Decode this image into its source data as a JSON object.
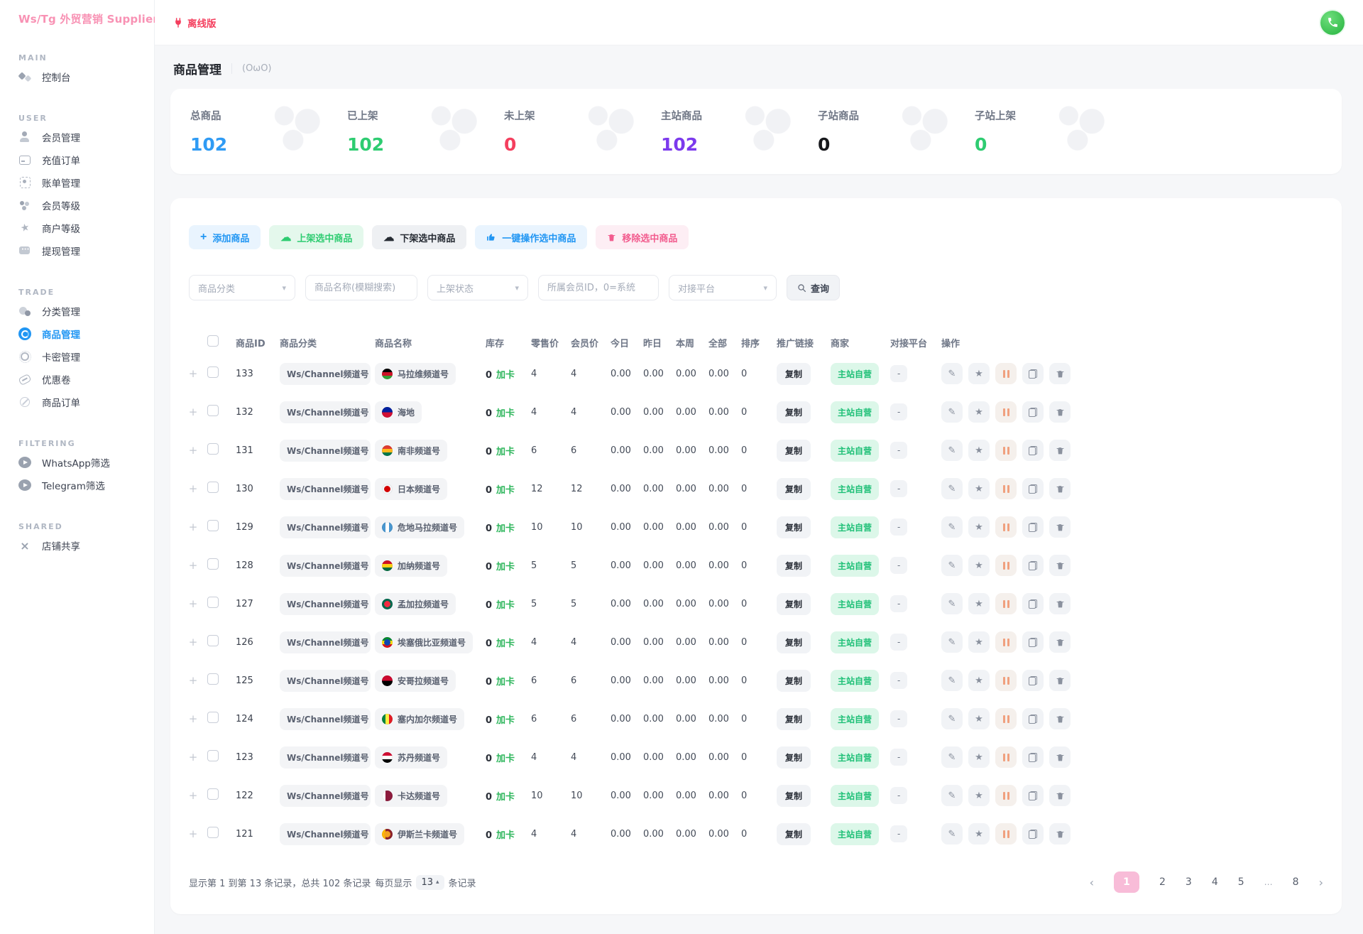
{
  "brand": {
    "logo": "Ws/Tg 外贸营销 Supplier",
    "collapse": "«"
  },
  "topbar": {
    "offline": "离线版"
  },
  "page": {
    "title": "商品管理",
    "subtitle": "(OωO)"
  },
  "sidebar": {
    "sections": [
      {
        "label": "MAIN",
        "items": [
          {
            "label": "控制台"
          }
        ]
      },
      {
        "label": "USER",
        "items": [
          {
            "label": "会员管理"
          },
          {
            "label": "充值订单"
          },
          {
            "label": "账单管理"
          },
          {
            "label": "会员等级"
          },
          {
            "label": "商户等级"
          },
          {
            "label": "提现管理"
          }
        ]
      },
      {
        "label": "TRADE",
        "items": [
          {
            "label": "分类管理"
          },
          {
            "label": "商品管理",
            "active": true
          },
          {
            "label": "卡密管理"
          },
          {
            "label": "优惠卷"
          },
          {
            "label": "商品订单"
          }
        ]
      },
      {
        "label": "FILTERING",
        "items": [
          {
            "label": "WhatsApp筛选"
          },
          {
            "label": "Telegram筛选"
          }
        ]
      },
      {
        "label": "SHARED",
        "items": [
          {
            "label": "店铺共享"
          }
        ]
      }
    ]
  },
  "stats": [
    {
      "label": "总商品",
      "value": "102",
      "color": "#2f9bf4"
    },
    {
      "label": "已上架",
      "value": "102",
      "color": "#2ecc71"
    },
    {
      "label": "未上架",
      "value": "0",
      "color": "#f43f5e"
    },
    {
      "label": "主站商品",
      "value": "102",
      "color": "#7c3aed"
    },
    {
      "label": "子站商品",
      "value": "0",
      "color": "#17181c"
    },
    {
      "label": "子站上架",
      "value": "0",
      "color": "#2ecc71"
    }
  ],
  "toolbar": {
    "buttons": [
      {
        "label": "添加商品"
      },
      {
        "label": "上架选中商品"
      },
      {
        "label": "下架选中商品"
      },
      {
        "label": "一键操作选中商品"
      },
      {
        "label": "移除选中商品"
      }
    ]
  },
  "filters": {
    "category": "商品分类",
    "name_placeholder": "商品名称(模糊搜索)",
    "status": "上架状态",
    "member_placeholder": "所属会员ID，0=系统",
    "platform": "对接平台",
    "search_label": "查询"
  },
  "table": {
    "headers": [
      "商品ID",
      "商品分类",
      "商品名称",
      "库存",
      "零售价",
      "会员价",
      "今日",
      "昨日",
      "本周",
      "全部",
      "排序",
      "推广链接",
      "商家",
      "对接平台",
      "操作"
    ],
    "stock_suffix": "加卡",
    "copy_label": "复制",
    "merchant_label": "主站自营",
    "platform_value": "-",
    "rows": [
      {
        "id": "133",
        "category": "Ws/Channel频道号",
        "name": "马拉维频道号",
        "flag": {
          "dir": "h",
          "colors": [
            "#000000",
            "#ce1126",
            "#339e35"
          ]
        },
        "stock": "0",
        "retail": "4",
        "member": "4",
        "today": "0.00",
        "yesterday": "0.00",
        "week": "0.00",
        "all": "0.00",
        "sort": "0"
      },
      {
        "id": "132",
        "category": "Ws/Channel频道号",
        "name": "海地",
        "flag": {
          "dir": "h",
          "colors": [
            "#00209f",
            "#d21034"
          ]
        },
        "stock": "0",
        "retail": "4",
        "member": "4",
        "today": "0.00",
        "yesterday": "0.00",
        "week": "0.00",
        "all": "0.00",
        "sort": "0"
      },
      {
        "id": "131",
        "category": "Ws/Channel频道号",
        "name": "南非频道号",
        "flag": {
          "dir": "h",
          "colors": [
            "#e03c31",
            "#ffb81c",
            "#007749"
          ]
        },
        "stock": "0",
        "retail": "6",
        "member": "6",
        "today": "0.00",
        "yesterday": "0.00",
        "week": "0.00",
        "all": "0.00",
        "sort": "0"
      },
      {
        "id": "130",
        "category": "Ws/Channel频道号",
        "name": "日本频道号",
        "flag": {
          "dir": "h",
          "colors": [
            "#f6f7f9"
          ],
          "dot": "#d30000"
        },
        "stock": "0",
        "retail": "12",
        "member": "12",
        "today": "0.00",
        "yesterday": "0.00",
        "week": "0.00",
        "all": "0.00",
        "sort": "0"
      },
      {
        "id": "129",
        "category": "Ws/Channel频道号",
        "name": "危地马拉频道号",
        "flag": {
          "dir": "v",
          "colors": [
            "#4997d0",
            "#ffffff",
            "#4997d0"
          ]
        },
        "stock": "0",
        "retail": "10",
        "member": "10",
        "today": "0.00",
        "yesterday": "0.00",
        "week": "0.00",
        "all": "0.00",
        "sort": "0"
      },
      {
        "id": "128",
        "category": "Ws/Channel频道号",
        "name": "加纳频道号",
        "flag": {
          "dir": "h",
          "colors": [
            "#ce1126",
            "#fcd116",
            "#006b3f"
          ]
        },
        "stock": "0",
        "retail": "5",
        "member": "5",
        "today": "0.00",
        "yesterday": "0.00",
        "week": "0.00",
        "all": "0.00",
        "sort": "0"
      },
      {
        "id": "127",
        "category": "Ws/Channel频道号",
        "name": "孟加拉频道号",
        "flag": {
          "dir": "h",
          "colors": [
            "#006a4e"
          ],
          "dot": "#f42a41"
        },
        "stock": "0",
        "retail": "5",
        "member": "5",
        "today": "0.00",
        "yesterday": "0.00",
        "week": "0.00",
        "all": "0.00",
        "sort": "0"
      },
      {
        "id": "126",
        "category": "Ws/Channel频道号",
        "name": "埃塞俄比亚频道号",
        "flag": {
          "dir": "h",
          "colors": [
            "#078930",
            "#fcdd09",
            "#da121a"
          ],
          "dot": "#0f47af"
        },
        "stock": "0",
        "retail": "4",
        "member": "4",
        "today": "0.00",
        "yesterday": "0.00",
        "week": "0.00",
        "all": "0.00",
        "sort": "0"
      },
      {
        "id": "125",
        "category": "Ws/Channel频道号",
        "name": "安哥拉频道号",
        "flag": {
          "dir": "h",
          "colors": [
            "#cc092f",
            "#000000"
          ]
        },
        "stock": "0",
        "retail": "6",
        "member": "6",
        "today": "0.00",
        "yesterday": "0.00",
        "week": "0.00",
        "all": "0.00",
        "sort": "0"
      },
      {
        "id": "124",
        "category": "Ws/Channel频道号",
        "name": "塞内加尔频道号",
        "flag": {
          "dir": "v",
          "colors": [
            "#00853f",
            "#fdef42",
            "#e31b23"
          ]
        },
        "stock": "0",
        "retail": "6",
        "member": "6",
        "today": "0.00",
        "yesterday": "0.00",
        "week": "0.00",
        "all": "0.00",
        "sort": "0"
      },
      {
        "id": "123",
        "category": "Ws/Channel频道号",
        "name": "苏丹频道号",
        "flag": {
          "dir": "h",
          "colors": [
            "#d21034",
            "#ffffff",
            "#000000"
          ]
        },
        "stock": "0",
        "retail": "4",
        "member": "4",
        "today": "0.00",
        "yesterday": "0.00",
        "week": "0.00",
        "all": "0.00",
        "sort": "0"
      },
      {
        "id": "122",
        "category": "Ws/Channel频道号",
        "name": "卡达频道号",
        "flag": {
          "dir": "v",
          "colors": [
            "#ffffff",
            "#8d1b3d",
            "#8d1b3d"
          ]
        },
        "stock": "0",
        "retail": "10",
        "member": "10",
        "today": "0.00",
        "yesterday": "0.00",
        "week": "0.00",
        "all": "0.00",
        "sort": "0"
      },
      {
        "id": "121",
        "category": "Ws/Channel频道号",
        "name": "伊斯兰卡频道号",
        "flag": {
          "dir": "v",
          "colors": [
            "#ffb700",
            "#8d2029",
            "#8d2029"
          ],
          "dot": "#f4a11e"
        },
        "stock": "0",
        "retail": "4",
        "member": "4",
        "today": "0.00",
        "yesterday": "0.00",
        "week": "0.00",
        "all": "0.00",
        "sort": "0"
      }
    ]
  },
  "pagination": {
    "summary_prefix": "显示第 1 到第 13 条记录，总共 102 条记录",
    "per_page_label": "每页显示",
    "per_page": "13",
    "per_page_caret": "▴",
    "unit": "条记录",
    "prev": "‹",
    "next": "›",
    "pages": [
      "1",
      "2",
      "3",
      "4",
      "5",
      "…",
      "8"
    ],
    "active": "1"
  }
}
